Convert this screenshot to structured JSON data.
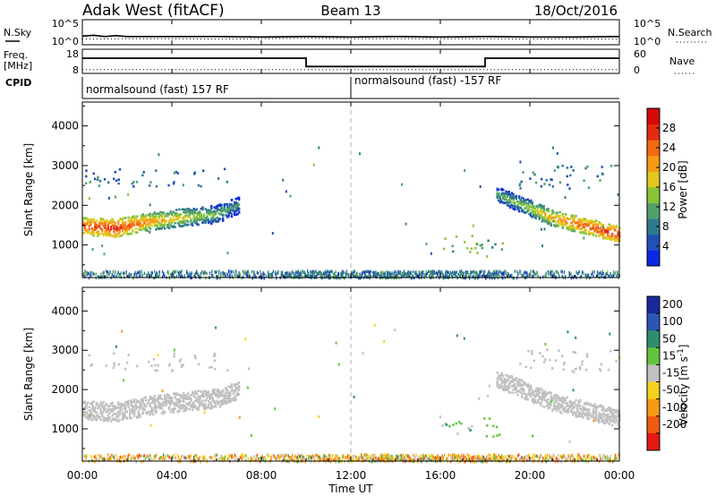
{
  "header": {
    "radar": "Adak West (fitACF)",
    "beam": "Beam 13",
    "date": "18/Oct/2016"
  },
  "colors": {
    "bg": "#ffffff",
    "axis": "#000000",
    "scatter_gray": "#c0c0c0",
    "noon_line": "#b0b0b0"
  },
  "chart_data": [
    {
      "type": "line",
      "panel": "noise",
      "left_label": "N.Sky",
      "right_label": "N.Search",
      "left_ticks": [
        "10^5",
        "10^0"
      ],
      "right_ticks": [
        "10^5",
        "10^0"
      ],
      "series": [
        {
          "name": "N.Sky",
          "style": "solid",
          "x": [
            0,
            0.5,
            1,
            1.5,
            2,
            4,
            6,
            8,
            10,
            12,
            14,
            16,
            18,
            20,
            22,
            24
          ],
          "y": [
            1.6,
            1.8,
            1.5,
            1.7,
            1.5,
            1.5,
            1.5,
            1.4,
            1.5,
            1.4,
            1.5,
            1.4,
            1.5,
            1.4,
            1.4,
            1.5
          ]
        },
        {
          "name": "N.Search",
          "style": "dotted",
          "x": [
            0,
            2,
            4,
            6,
            8,
            10,
            12,
            14,
            16,
            18,
            20,
            22,
            24
          ],
          "y": [
            0.9,
            1.0,
            1.0,
            0.9,
            1.0,
            1.1,
            1.0,
            1.0,
            1.0,
            1.0,
            0.9,
            1.0,
            0.9
          ]
        }
      ]
    },
    {
      "type": "line",
      "panel": "frequency",
      "left_label": "Freq.",
      "left_unit": "[MHz]",
      "right_label": "Nave",
      "left_ticks": [
        "18",
        "8"
      ],
      "right_ticks": [
        "60",
        "0"
      ],
      "series": [
        {
          "name": "Freq.",
          "style": "solid",
          "x": [
            0,
            10.0,
            10.0,
            18.0,
            18.0,
            24
          ],
          "y": [
            14.5,
            14.5,
            10.5,
            10.5,
            14.5,
            14.5
          ]
        },
        {
          "name": "Nave",
          "style": "dotted",
          "x": [
            0,
            24
          ],
          "y": [
            9,
            9
          ]
        }
      ]
    },
    {
      "type": "table",
      "panel": "cpid",
      "label": "CPID",
      "segments": [
        {
          "text": "normalsound (fast) 157 RF",
          "start_hour": 0
        },
        {
          "text": "normalsound (fast) -157 RF",
          "start_hour": 12
        }
      ]
    },
    {
      "type": "heatmap",
      "panel": "power",
      "ylabel": "Slant Range [km]",
      "ylim": [
        180,
        4600
      ],
      "yticks": [
        1000,
        2000,
        3000,
        4000
      ],
      "colorbar_label": "Power [dB]",
      "colorbar_ticks": [
        4,
        8,
        12,
        16,
        20,
        24,
        28
      ],
      "colorbar_range": [
        0,
        32
      ],
      "colorbar_colors": [
        "#0a28e6",
        "#224fb8",
        "#2f7a8e",
        "#52a06a",
        "#88c436",
        "#e0c81e",
        "#f79a16",
        "#f26a10",
        "#e52a12",
        "#d40a0a"
      ],
      "features": [
        {
          "kind": "band",
          "x": [
            0,
            1.5,
            3,
            4.5,
            6,
            7.0
          ],
          "y": [
            1500,
            1450,
            1620,
            1720,
            1800,
            2050
          ],
          "spread_km": 220,
          "power": [
            26,
            28,
            22,
            18,
            14,
            10
          ]
        },
        {
          "kind": "patch",
          "x0": 0.0,
          "x1": 6.5,
          "y0": 2500,
          "y1": 2950,
          "power": 7
        },
        {
          "kind": "patch",
          "x0": 15.8,
          "x1": 18.8,
          "y0": 780,
          "y1": 1300,
          "power": 12
        },
        {
          "kind": "band",
          "x": [
            18.5,
            19.8,
            21,
            22.5,
            24
          ],
          "y": [
            2300,
            2000,
            1700,
            1500,
            1280
          ],
          "spread_km": 200,
          "power": [
            12,
            16,
            22,
            26,
            28
          ]
        },
        {
          "kind": "patch",
          "x0": 19.5,
          "x1": 24.0,
          "y0": 2450,
          "y1": 3050,
          "power": 8
        },
        {
          "kind": "ground",
          "x0": 0,
          "x1": 24,
          "y0": 200,
          "y1": 380,
          "power": 8
        }
      ]
    },
    {
      "type": "heatmap",
      "panel": "velocity",
      "ylabel": "Slant Range [km]",
      "ylim": [
        180,
        4600
      ],
      "yticks": [
        1000,
        2000,
        3000,
        4000
      ],
      "colorbar_label": "Velocity [m s",
      "colorbar_unit_sup": "-1",
      "colorbar_ticks": [
        "200",
        "100",
        "50",
        "15",
        "-15",
        "-50",
        "-100",
        "-200"
      ],
      "colorbar_colors": [
        "#1a2a9c",
        "#2b56b5",
        "#2f8c6e",
        "#62c43c",
        "#c0c0c0",
        "#f6d21e",
        "#f79a16",
        "#f05a12",
        "#e41a12"
      ],
      "features": [
        {
          "kind": "band",
          "x": [
            0,
            1.5,
            3,
            4.5,
            6,
            7.0
          ],
          "y": [
            1500,
            1450,
            1620,
            1720,
            1800,
            2050
          ],
          "spread_km": 240,
          "velocity": 0
        },
        {
          "kind": "patch",
          "x0": 0.0,
          "x1": 6.5,
          "y0": 2500,
          "y1": 2950,
          "velocity": 0
        },
        {
          "kind": "patch",
          "x0": 15.8,
          "x1": 18.8,
          "y0": 800,
          "y1": 1300,
          "velocity": 20
        },
        {
          "kind": "band",
          "x": [
            18.5,
            19.8,
            21,
            22.5,
            24
          ],
          "y": [
            2300,
            2000,
            1700,
            1500,
            1280
          ],
          "spread_km": 220,
          "velocity": 0
        },
        {
          "kind": "patch",
          "x0": 19.5,
          "x1": 24.0,
          "y0": 2450,
          "y1": 3050,
          "velocity": 0
        },
        {
          "kind": "ground",
          "x0": 0,
          "x1": 24,
          "y0": 200,
          "y1": 380,
          "velocity": -40
        }
      ]
    }
  ],
  "x_axis": {
    "label": "Time UT",
    "ticks": [
      "00:00",
      "04:00",
      "08:00",
      "12:00",
      "16:00",
      "20:00",
      "00:00"
    ],
    "xlim": [
      0,
      24
    ]
  }
}
